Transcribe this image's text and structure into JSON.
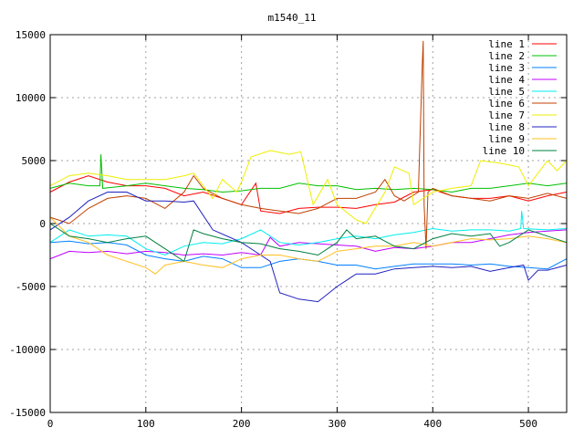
{
  "chart_data": {
    "type": "line",
    "title": "m1540_11",
    "xlabel": "",
    "ylabel": "",
    "xlim": [
      0,
      540
    ],
    "ylim": [
      -15000,
      15000
    ],
    "xticks": [
      0,
      100,
      200,
      300,
      400,
      500
    ],
    "yticks": [
      -15000,
      -10000,
      -5000,
      0,
      5000,
      10000,
      15000
    ],
    "grid": true,
    "legend_position": "top-right",
    "series": [
      {
        "name": "line 1",
        "color": "#ff0000",
        "points": [
          [
            0,
            2500
          ],
          [
            20,
            3300
          ],
          [
            40,
            3800
          ],
          [
            60,
            3300
          ],
          [
            80,
            3000
          ],
          [
            100,
            3000
          ],
          [
            120,
            2800
          ],
          [
            140,
            2200
          ],
          [
            160,
            2500
          ],
          [
            180,
            2000
          ],
          [
            200,
            1500
          ],
          [
            215,
            3200
          ],
          [
            220,
            1000
          ],
          [
            240,
            800
          ],
          [
            260,
            1200
          ],
          [
            280,
            1300
          ],
          [
            300,
            1300
          ],
          [
            320,
            1200
          ],
          [
            340,
            1500
          ],
          [
            360,
            1700
          ],
          [
            380,
            2500
          ],
          [
            400,
            2700
          ],
          [
            420,
            2200
          ],
          [
            440,
            2000
          ],
          [
            460,
            2000
          ],
          [
            480,
            2200
          ],
          [
            500,
            1800
          ],
          [
            520,
            2200
          ],
          [
            540,
            2500
          ]
        ]
      },
      {
        "name": "line 2",
        "color": "#00c000",
        "points": [
          [
            0,
            2800
          ],
          [
            20,
            3200
          ],
          [
            40,
            3000
          ],
          [
            52,
            3000
          ],
          [
            53,
            5500
          ],
          [
            55,
            2800
          ],
          [
            80,
            3000
          ],
          [
            100,
            3200
          ],
          [
            120,
            3000
          ],
          [
            140,
            2800
          ],
          [
            160,
            2700
          ],
          [
            180,
            2500
          ],
          [
            200,
            2600
          ],
          [
            220,
            2800
          ],
          [
            240,
            2800
          ],
          [
            260,
            3200
          ],
          [
            280,
            3000
          ],
          [
            300,
            3000
          ],
          [
            320,
            2700
          ],
          [
            340,
            2800
          ],
          [
            360,
            2700
          ],
          [
            380,
            2800
          ],
          [
            400,
            2700
          ],
          [
            420,
            2500
          ],
          [
            440,
            2800
          ],
          [
            460,
            2800
          ],
          [
            480,
            3000
          ],
          [
            500,
            3200
          ],
          [
            520,
            3000
          ],
          [
            540,
            3200
          ]
        ]
      },
      {
        "name": "line 3",
        "color": "#0080ff",
        "points": [
          [
            0,
            -1500
          ],
          [
            20,
            -1400
          ],
          [
            40,
            -1600
          ],
          [
            60,
            -1500
          ],
          [
            80,
            -1700
          ],
          [
            100,
            -2500
          ],
          [
            120,
            -2800
          ],
          [
            140,
            -3000
          ],
          [
            160,
            -2600
          ],
          [
            180,
            -2800
          ],
          [
            200,
            -3500
          ],
          [
            220,
            -3500
          ],
          [
            240,
            -3000
          ],
          [
            260,
            -2800
          ],
          [
            280,
            -3000
          ],
          [
            300,
            -3300
          ],
          [
            320,
            -3300
          ],
          [
            340,
            -3600
          ],
          [
            360,
            -3400
          ],
          [
            380,
            -3200
          ],
          [
            400,
            -3200
          ],
          [
            420,
            -3200
          ],
          [
            440,
            -3300
          ],
          [
            460,
            -3200
          ],
          [
            480,
            -3400
          ],
          [
            500,
            -3500
          ],
          [
            520,
            -3600
          ],
          [
            540,
            -2800
          ]
        ]
      },
      {
        "name": "line 4",
        "color": "#c000ff",
        "points": [
          [
            0,
            -2800
          ],
          [
            20,
            -2200
          ],
          [
            40,
            -2300
          ],
          [
            60,
            -2200
          ],
          [
            80,
            -2400
          ],
          [
            100,
            -2200
          ],
          [
            120,
            -2300
          ],
          [
            140,
            -2500
          ],
          [
            160,
            -2400
          ],
          [
            180,
            -2500
          ],
          [
            200,
            -2300
          ],
          [
            220,
            -2500
          ],
          [
            230,
            -1100
          ],
          [
            240,
            -1800
          ],
          [
            260,
            -1500
          ],
          [
            280,
            -1600
          ],
          [
            300,
            -1700
          ],
          [
            320,
            -1800
          ],
          [
            340,
            -2200
          ],
          [
            360,
            -1900
          ],
          [
            380,
            -2000
          ],
          [
            400,
            -1800
          ],
          [
            420,
            -1500
          ],
          [
            440,
            -1500
          ],
          [
            460,
            -1200
          ],
          [
            480,
            -900
          ],
          [
            500,
            -700
          ],
          [
            520,
            -600
          ],
          [
            540,
            -500
          ]
        ]
      },
      {
        "name": "line 5",
        "color": "#00eeee",
        "points": [
          [
            0,
            -1500
          ],
          [
            20,
            -500
          ],
          [
            40,
            -1000
          ],
          [
            60,
            -900
          ],
          [
            80,
            -1000
          ],
          [
            100,
            -2000
          ],
          [
            120,
            -2500
          ],
          [
            140,
            -1800
          ],
          [
            160,
            -1500
          ],
          [
            180,
            -1600
          ],
          [
            200,
            -1200
          ],
          [
            220,
            -500
          ],
          [
            240,
            -1500
          ],
          [
            260,
            -1700
          ],
          [
            280,
            -1500
          ],
          [
            300,
            -1200
          ],
          [
            320,
            -1000
          ],
          [
            340,
            -1200
          ],
          [
            360,
            -900
          ],
          [
            380,
            -700
          ],
          [
            400,
            -400
          ],
          [
            420,
            -600
          ],
          [
            440,
            -500
          ],
          [
            460,
            -500
          ],
          [
            480,
            -600
          ],
          [
            492,
            -400
          ],
          [
            493,
            1000
          ],
          [
            495,
            -400
          ],
          [
            520,
            -500
          ],
          [
            540,
            -400
          ]
        ]
      },
      {
        "name": "line 6",
        "color": "#c04000",
        "points": [
          [
            0,
            500
          ],
          [
            20,
            0
          ],
          [
            40,
            1200
          ],
          [
            60,
            2000
          ],
          [
            80,
            2200
          ],
          [
            100,
            2000
          ],
          [
            120,
            1200
          ],
          [
            140,
            2500
          ],
          [
            150,
            3800
          ],
          [
            160,
            2800
          ],
          [
            180,
            2000
          ],
          [
            200,
            1500
          ],
          [
            220,
            1200
          ],
          [
            240,
            1000
          ],
          [
            260,
            800
          ],
          [
            280,
            1200
          ],
          [
            300,
            2000
          ],
          [
            320,
            2000
          ],
          [
            340,
            2500
          ],
          [
            350,
            3500
          ],
          [
            360,
            2200
          ],
          [
            370,
            1800
          ],
          [
            385,
            2500
          ],
          [
            389,
            12500
          ],
          [
            390,
            14500
          ],
          [
            391,
            1500
          ],
          [
            393,
            -2000
          ],
          [
            395,
            2500
          ],
          [
            400,
            2800
          ],
          [
            420,
            2200
          ],
          [
            440,
            2000
          ],
          [
            460,
            1800
          ],
          [
            480,
            2200
          ],
          [
            500,
            2000
          ],
          [
            520,
            2400
          ],
          [
            540,
            2000
          ]
        ]
      },
      {
        "name": "line 7",
        "color": "#eeee00",
        "points": [
          [
            0,
            3000
          ],
          [
            20,
            3800
          ],
          [
            40,
            4000
          ],
          [
            60,
            3800
          ],
          [
            80,
            3500
          ],
          [
            100,
            3500
          ],
          [
            120,
            3500
          ],
          [
            140,
            3800
          ],
          [
            150,
            4000
          ],
          [
            170,
            2000
          ],
          [
            180,
            3500
          ],
          [
            195,
            2500
          ],
          [
            200,
            3300
          ],
          [
            210,
            5300
          ],
          [
            230,
            5800
          ],
          [
            250,
            5500
          ],
          [
            262,
            5700
          ],
          [
            275,
            1500
          ],
          [
            290,
            3500
          ],
          [
            300,
            1500
          ],
          [
            320,
            300
          ],
          [
            330,
            0
          ],
          [
            350,
            2500
          ],
          [
            360,
            4500
          ],
          [
            375,
            4000
          ],
          [
            380,
            1500
          ],
          [
            400,
            2500
          ],
          [
            420,
            2800
          ],
          [
            440,
            3000
          ],
          [
            450,
            5000
          ],
          [
            470,
            4800
          ],
          [
            490,
            4500
          ],
          [
            500,
            3000
          ],
          [
            520,
            5000
          ],
          [
            530,
            4200
          ],
          [
            540,
            5000
          ]
        ]
      },
      {
        "name": "line 8",
        "color": "#2020c0",
        "points": [
          [
            0,
            -500
          ],
          [
            20,
            500
          ],
          [
            40,
            1800
          ],
          [
            60,
            2500
          ],
          [
            80,
            2500
          ],
          [
            100,
            1800
          ],
          [
            120,
            1800
          ],
          [
            140,
            1700
          ],
          [
            150,
            1800
          ],
          [
            170,
            -500
          ],
          [
            200,
            -1500
          ],
          [
            220,
            -2500
          ],
          [
            230,
            -3000
          ],
          [
            240,
            -5500
          ],
          [
            260,
            -6000
          ],
          [
            280,
            -6200
          ],
          [
            300,
            -5000
          ],
          [
            320,
            -4000
          ],
          [
            340,
            -4000
          ],
          [
            360,
            -3600
          ],
          [
            380,
            -3500
          ],
          [
            400,
            -3400
          ],
          [
            420,
            -3500
          ],
          [
            440,
            -3400
          ],
          [
            460,
            -3800
          ],
          [
            480,
            -3500
          ],
          [
            495,
            -3300
          ],
          [
            500,
            -4500
          ],
          [
            510,
            -3700
          ],
          [
            520,
            -3700
          ],
          [
            540,
            -3300
          ]
        ]
      },
      {
        "name": "line 9",
        "color": "#ffc020",
        "points": [
          [
            0,
            500
          ],
          [
            20,
            -1000
          ],
          [
            40,
            -1500
          ],
          [
            60,
            -2500
          ],
          [
            80,
            -3000
          ],
          [
            100,
            -3500
          ],
          [
            110,
            -4000
          ],
          [
            120,
            -3300
          ],
          [
            140,
            -3000
          ],
          [
            160,
            -3300
          ],
          [
            180,
            -3500
          ],
          [
            200,
            -2800
          ],
          [
            220,
            -2500
          ],
          [
            240,
            -2500
          ],
          [
            260,
            -2800
          ],
          [
            280,
            -3000
          ],
          [
            300,
            -2200
          ],
          [
            320,
            -2000
          ],
          [
            340,
            -1800
          ],
          [
            360,
            -1800
          ],
          [
            380,
            -1500
          ],
          [
            400,
            -1800
          ],
          [
            420,
            -1500
          ],
          [
            440,
            -1200
          ],
          [
            460,
            -1300
          ],
          [
            480,
            -1200
          ],
          [
            500,
            -1000
          ],
          [
            520,
            -1200
          ],
          [
            540,
            -1500
          ]
        ]
      },
      {
        "name": "line 10",
        "color": "#008040",
        "points": [
          [
            0,
            0
          ],
          [
            20,
            -1000
          ],
          [
            40,
            -1200
          ],
          [
            60,
            -1500
          ],
          [
            80,
            -1200
          ],
          [
            100,
            -1000
          ],
          [
            120,
            -2000
          ],
          [
            140,
            -3000
          ],
          [
            150,
            -500
          ],
          [
            160,
            -800
          ],
          [
            180,
            -1200
          ],
          [
            200,
            -1500
          ],
          [
            220,
            -1600
          ],
          [
            240,
            -2000
          ],
          [
            260,
            -2200
          ],
          [
            280,
            -2500
          ],
          [
            300,
            -1500
          ],
          [
            310,
            -500
          ],
          [
            320,
            -1200
          ],
          [
            340,
            -1000
          ],
          [
            360,
            -1800
          ],
          [
            380,
            -2000
          ],
          [
            400,
            -1200
          ],
          [
            420,
            -800
          ],
          [
            440,
            -1000
          ],
          [
            460,
            -800
          ],
          [
            470,
            -1800
          ],
          [
            480,
            -1500
          ],
          [
            500,
            -500
          ],
          [
            520,
            -1000
          ],
          [
            540,
            -1500
          ]
        ]
      }
    ]
  }
}
